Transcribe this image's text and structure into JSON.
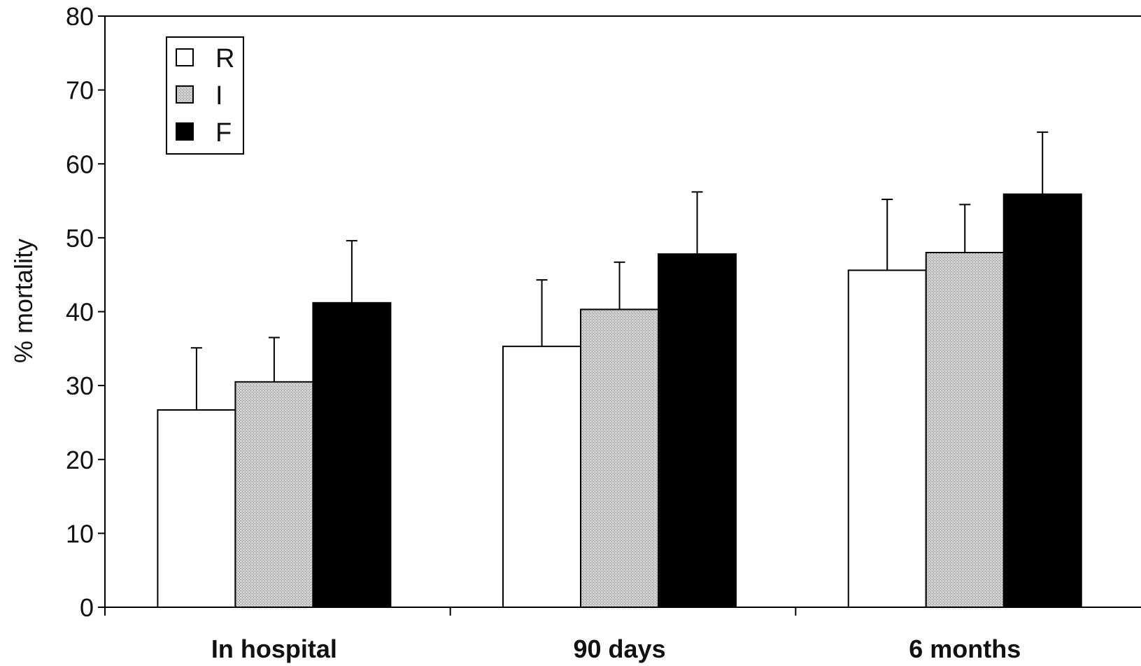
{
  "chart_data": {
    "type": "bar",
    "title": "",
    "xlabel": "",
    "ylabel": "% mortality",
    "ylim": [
      0,
      80
    ],
    "yticks": [
      0,
      10,
      20,
      30,
      40,
      50,
      60,
      70,
      80
    ],
    "grid": false,
    "legend_position": "top-left",
    "categories": [
      "In hospital",
      "90 days",
      "6 months"
    ],
    "series": [
      {
        "name": "R",
        "values": [
          26.7,
          35.3,
          45.6
        ],
        "errors": [
          8.4,
          9.0,
          9.6
        ],
        "color": "#ffffff"
      },
      {
        "name": "I",
        "values": [
          30.5,
          40.3,
          48.0
        ],
        "errors": [
          6.0,
          6.4,
          6.5
        ],
        "color": "#c8c8c8"
      },
      {
        "name": "F",
        "values": [
          41.2,
          47.8,
          55.9
        ],
        "errors": [
          8.4,
          8.4,
          8.4
        ],
        "color": "#000000"
      }
    ]
  }
}
